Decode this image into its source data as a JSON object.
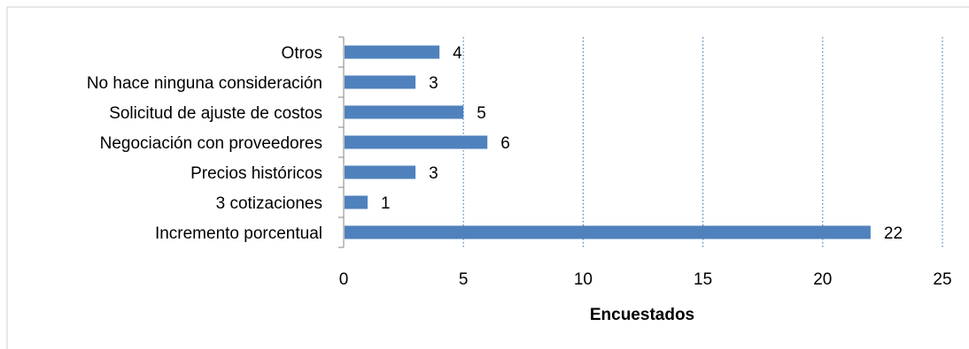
{
  "chart_data": {
    "type": "bar",
    "orientation": "horizontal",
    "categories": [
      "Otros",
      "No hace ninguna consideración",
      "Solicitud de ajuste de costos",
      "Negociación con proveedores",
      "Precios históricos",
      "3 cotizaciones",
      "Incremento porcentual"
    ],
    "values": [
      4,
      3,
      5,
      6,
      3,
      1,
      22
    ],
    "value_labels": [
      "4",
      "3",
      "5",
      "6",
      "3",
      "1",
      "22"
    ],
    "xlabel": "Encuestados",
    "ylabel": "",
    "title": "",
    "xlim": [
      0,
      25
    ],
    "x_ticks": [
      0,
      5,
      10,
      15,
      20,
      25
    ],
    "x_tick_labels": [
      "0",
      "5",
      "10",
      "15",
      "20",
      "25"
    ],
    "grid": "vertical dotted",
    "legend": "none",
    "bar_color": "#4f81bd",
    "grid_color": "#4f81bd",
    "axis_color": "#868686"
  }
}
